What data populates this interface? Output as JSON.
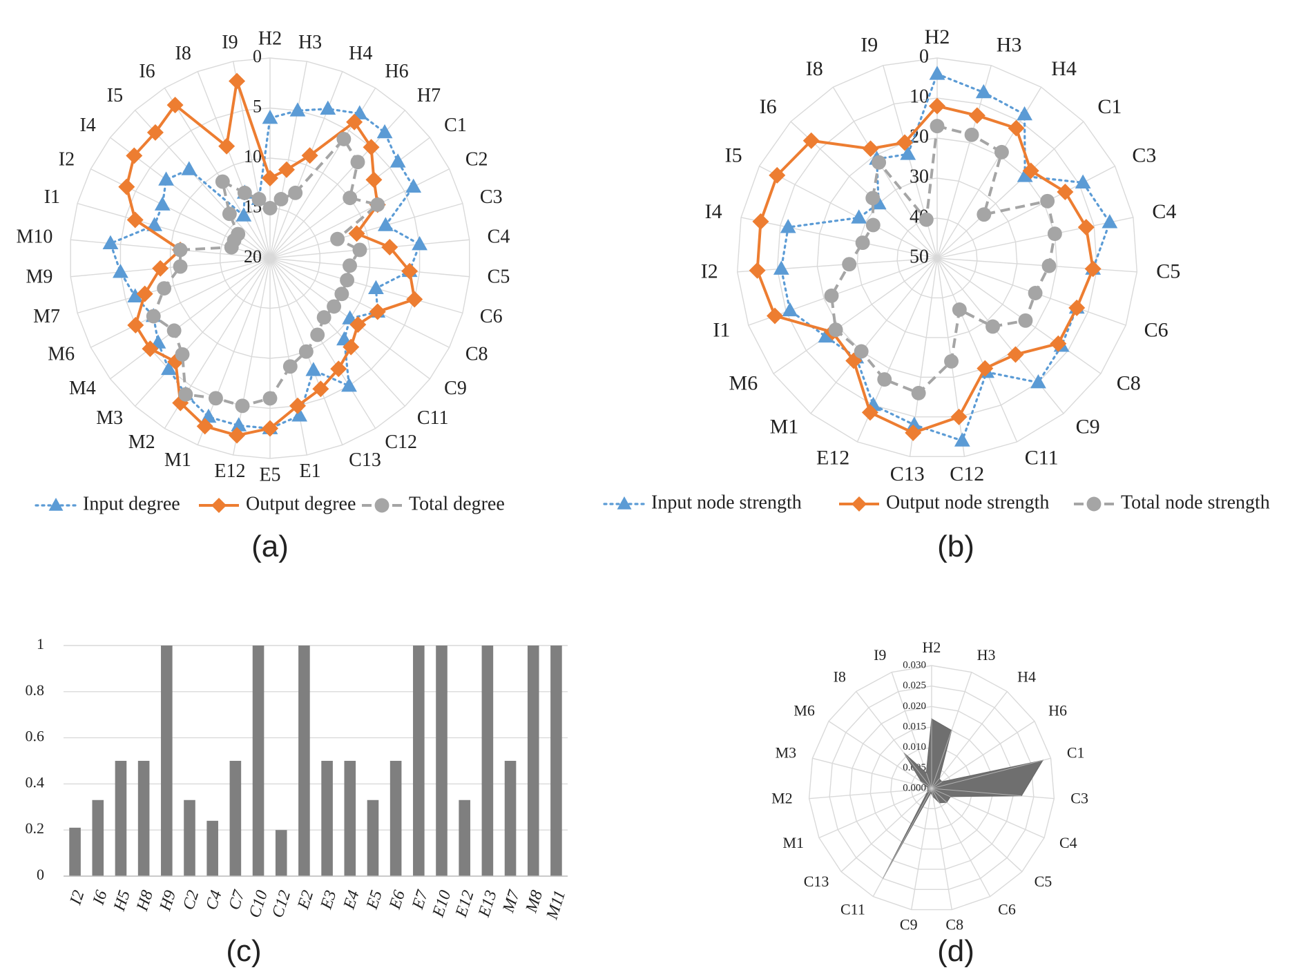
{
  "panels": [
    "(a)",
    "(b)",
    "(c)",
    "(d)"
  ],
  "colors": {
    "input": "#5b9bd5",
    "output": "#ed7d31",
    "total": "#a5a5a5",
    "grid": "#d9d9d9",
    "bar": "#7f7f7f"
  },
  "chart_data": [
    {
      "panel": "(a)",
      "type": "radar",
      "categories": [
        "H2",
        "H3",
        "H4",
        "H6",
        "H7",
        "C1",
        "C2",
        "C3",
        "C4",
        "C5",
        "C6",
        "C8",
        "C9",
        "C11",
        "C12",
        "C13",
        "E1",
        "E5",
        "E12",
        "M1",
        "M2",
        "M3",
        "M4",
        "M6",
        "M7",
        "M9",
        "M10",
        "I1",
        "I2",
        "I4",
        "I5",
        "I6",
        "I8",
        "I9"
      ],
      "axis": {
        "min": 0,
        "max": 20,
        "ticks": [
          0,
          5,
          10,
          15,
          20
        ],
        "reversed": true
      },
      "legend_position": "bottom",
      "series": [
        {
          "name": "Input degree",
          "marker": "triangle",
          "values": [
            6,
            5,
            4,
            3,
            3,
            4,
            4,
            8,
            5,
            6,
            9,
            8,
            10,
            9,
            5,
            8,
            4,
            3,
            3,
            3,
            4,
            5,
            6,
            7,
            6,
            5,
            4,
            8,
            8,
            7,
            8,
            15,
            13,
            14
          ]
        },
        {
          "name": "Output degree",
          "marker": "diamond",
          "values": [
            12,
            11,
            9,
            4,
            5,
            7,
            8,
            11,
            8,
            6,
            5,
            8,
            9,
            8,
            7,
            6,
            5,
            3,
            2,
            2,
            3,
            6,
            5,
            5,
            7,
            9,
            11,
            6,
            4,
            3,
            3,
            2,
            8,
            2
          ]
        },
        {
          "name": "Total degree",
          "marker": "circle",
          "values": [
            15,
            14,
            13,
            6,
            7,
            10,
            8,
            13,
            11,
            12,
            12,
            12,
            12,
            12,
            11,
            10,
            9,
            6,
            5,
            5,
            4,
            7,
            8,
            7,
            9,
            11,
            11,
            16,
            16,
            16,
            14,
            11,
            13,
            14
          ]
        }
      ]
    },
    {
      "panel": "(b)",
      "type": "radar",
      "categories": [
        "H2",
        "H3",
        "H4",
        "C1",
        "C3",
        "C4",
        "C5",
        "C6",
        "C8",
        "C9",
        "C11",
        "C12",
        "C13",
        "E12",
        "M1",
        "M6",
        "I1",
        "I2",
        "I4",
        "I5",
        "I6",
        "I8",
        "I9"
      ],
      "axis": {
        "min": 0,
        "max": 50,
        "ticks": [
          0,
          10,
          20,
          30,
          40,
          50
        ],
        "reversed": true
      },
      "legend_position": "bottom",
      "series": [
        {
          "name": "Input node strength",
          "marker": "triangle",
          "values": [
            4,
            7,
            8,
            20,
            9,
            6,
            11,
            13,
            12,
            10,
            19,
            4,
            8,
            10,
            18,
            16,
            11,
            11,
            12,
            28,
            30,
            21,
            23
          ]
        },
        {
          "name": "Output node strength",
          "marker": "diamond",
          "values": [
            12,
            13,
            12,
            18,
            14,
            12,
            11,
            13,
            13,
            19,
            20,
            10,
            6,
            8,
            17,
            18,
            7,
            5,
            5,
            5,
            7,
            18,
            20
          ]
        },
        {
          "name": "Total node strength",
          "marker": "circle",
          "values": [
            17,
            18,
            19,
            34,
            19,
            20,
            22,
            24,
            23,
            28,
            36,
            24,
            16,
            17,
            20,
            19,
            22,
            28,
            31,
            32,
            28,
            22,
            40
          ]
        }
      ]
    },
    {
      "panel": "(c)",
      "type": "bar",
      "categories": [
        "I2",
        "I6",
        "H5",
        "H8",
        "H9",
        "C2",
        "C4",
        "C7",
        "C10",
        "C12",
        "E2",
        "E3",
        "E4",
        "E5",
        "E6",
        "E7",
        "E10",
        "E12",
        "E13",
        "M7",
        "M8",
        "M11"
      ],
      "values": [
        0.21,
        0.33,
        0.5,
        0.5,
        1,
        0.33,
        0.24,
        0.5,
        1,
        0.2,
        1,
        0.5,
        0.5,
        0.33,
        0.5,
        1,
        1,
        0.33,
        1,
        0.5,
        1,
        1
      ],
      "yticks": [
        "0",
        "0.2",
        "0.4",
        "0.6",
        "0.8",
        "1"
      ],
      "ylim": [
        0,
        1
      ],
      "grid": true
    },
    {
      "panel": "(d)",
      "type": "radar",
      "categories": [
        "H2",
        "H3",
        "H4",
        "H6",
        "C1",
        "C3",
        "C4",
        "C5",
        "C6",
        "C8",
        "C9",
        "C11",
        "C13",
        "M1",
        "M2",
        "M3",
        "M6",
        "I8",
        "I9"
      ],
      "axis": {
        "min": 0,
        "max": 0.03,
        "ticks": [
          "0.000",
          "0.005",
          "0.010",
          "0.015",
          "0.020",
          "0.025",
          "0.030"
        ]
      },
      "values": [
        0.017,
        0.015,
        0.003,
        0.003,
        0.028,
        0.022,
        0.005,
        0.005,
        0.004,
        0.002,
        0.001,
        0.025,
        0.0015,
        0.001,
        0.001,
        0.001,
        0.003,
        0.011,
        0.004
      ],
      "fill": true
    }
  ]
}
